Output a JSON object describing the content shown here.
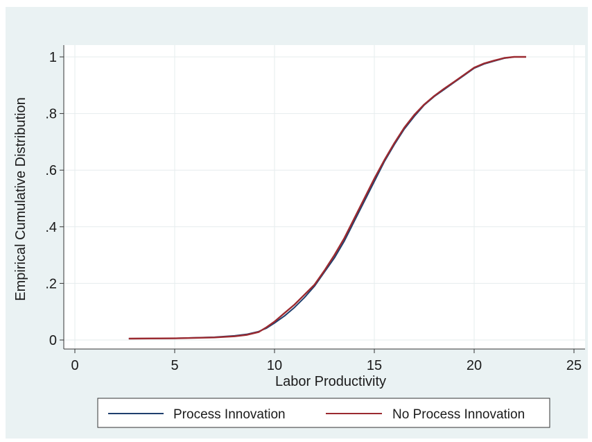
{
  "chart_data": {
    "type": "line",
    "xlabel": "Labor Productivity",
    "ylabel": "Empirical Cumulative Distribution",
    "xlim": [
      0,
      25
    ],
    "ylim": [
      0,
      1
    ],
    "x_ticks": [
      0,
      5,
      10,
      15,
      20,
      25
    ],
    "y_ticks": [
      0,
      0.2,
      0.4,
      0.6,
      0.8,
      1
    ],
    "y_tick_labels": [
      "0",
      ".2",
      ".4",
      ".6",
      ".8",
      "1"
    ],
    "grid": true,
    "legend_position": "bottom",
    "series": [
      {
        "name": "Process Innovation",
        "color": "#1f3f6e",
        "points": [
          [
            2.7,
            0.005
          ],
          [
            5.0,
            0.006
          ],
          [
            7.0,
            0.01
          ],
          [
            8.0,
            0.015
          ],
          [
            8.6,
            0.02
          ],
          [
            9.2,
            0.03
          ],
          [
            9.6,
            0.042
          ],
          [
            10.0,
            0.06
          ],
          [
            10.5,
            0.085
          ],
          [
            11.0,
            0.115
          ],
          [
            11.5,
            0.15
          ],
          [
            12.0,
            0.19
          ],
          [
            12.5,
            0.24
          ],
          [
            13.0,
            0.29
          ],
          [
            13.5,
            0.35
          ],
          [
            14.0,
            0.42
          ],
          [
            14.5,
            0.49
          ],
          [
            15.0,
            0.56
          ],
          [
            15.5,
            0.63
          ],
          [
            16.0,
            0.69
          ],
          [
            16.5,
            0.745
          ],
          [
            17.0,
            0.79
          ],
          [
            17.5,
            0.83
          ],
          [
            18.0,
            0.86
          ],
          [
            18.5,
            0.885
          ],
          [
            19.0,
            0.91
          ],
          [
            19.5,
            0.935
          ],
          [
            20.0,
            0.96
          ],
          [
            20.5,
            0.975
          ],
          [
            21.0,
            0.985
          ],
          [
            21.5,
            0.995
          ],
          [
            22.0,
            1.0
          ],
          [
            22.6,
            1.0
          ]
        ]
      },
      {
        "name": "No Process Innovation",
        "color": "#9b2a30",
        "points": [
          [
            2.7,
            0.005
          ],
          [
            5.0,
            0.006
          ],
          [
            7.0,
            0.009
          ],
          [
            8.0,
            0.013
          ],
          [
            8.6,
            0.018
          ],
          [
            9.2,
            0.028
          ],
          [
            9.6,
            0.045
          ],
          [
            10.0,
            0.065
          ],
          [
            10.5,
            0.095
          ],
          [
            11.0,
            0.125
          ],
          [
            11.5,
            0.16
          ],
          [
            12.0,
            0.195
          ],
          [
            12.5,
            0.245
          ],
          [
            13.0,
            0.3
          ],
          [
            13.5,
            0.36
          ],
          [
            14.0,
            0.43
          ],
          [
            14.5,
            0.5
          ],
          [
            15.0,
            0.57
          ],
          [
            15.5,
            0.635
          ],
          [
            16.0,
            0.695
          ],
          [
            16.5,
            0.75
          ],
          [
            17.0,
            0.795
          ],
          [
            17.5,
            0.832
          ],
          [
            18.0,
            0.862
          ],
          [
            18.5,
            0.888
          ],
          [
            19.0,
            0.912
          ],
          [
            19.5,
            0.937
          ],
          [
            20.0,
            0.962
          ],
          [
            20.5,
            0.977
          ],
          [
            21.0,
            0.987
          ],
          [
            21.5,
            0.996
          ],
          [
            22.0,
            1.0
          ],
          [
            22.6,
            1.0
          ]
        ]
      }
    ]
  }
}
